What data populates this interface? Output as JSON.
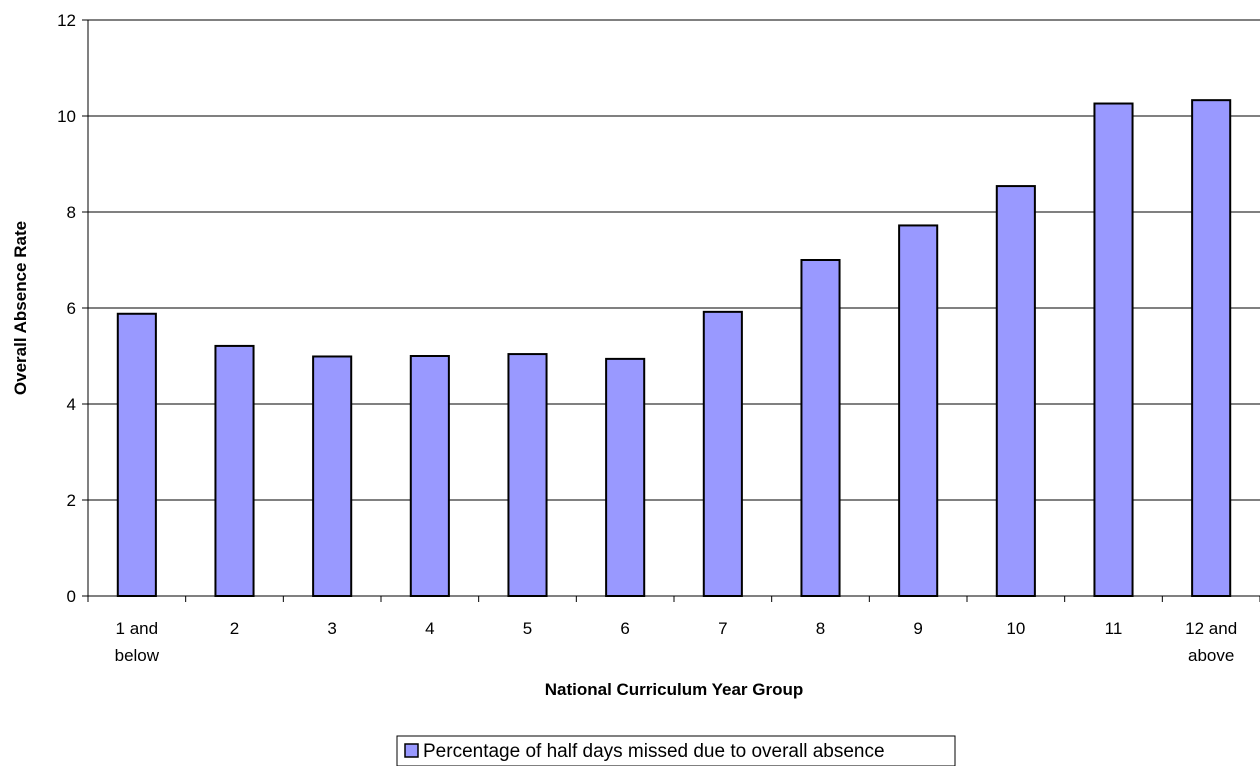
{
  "chart_data": {
    "type": "bar",
    "title": "",
    "xlabel": "National Curriculum Year Group",
    "ylabel": "Overall Absence Rate",
    "ylim": [
      0,
      12
    ],
    "yticks": [
      "0",
      "2",
      "4",
      "6",
      "8",
      "10",
      "12"
    ],
    "grid": true,
    "legend_position": "bottom",
    "categories": [
      [
        "1 and",
        "below"
      ],
      [
        "2"
      ],
      [
        "3"
      ],
      [
        "4"
      ],
      [
        "5"
      ],
      [
        "6"
      ],
      [
        "7"
      ],
      [
        "8"
      ],
      [
        "9"
      ],
      [
        "10"
      ],
      [
        "11"
      ],
      [
        "12 and",
        "above"
      ]
    ],
    "series": [
      {
        "name": "Percentage of half days missed due to overall absence",
        "color": "#9999ff",
        "values": [
          5.88,
          5.21,
          4.99,
          5.0,
          5.04,
          4.94,
          5.92,
          7.0,
          7.72,
          8.54,
          10.26,
          10.33
        ]
      }
    ]
  }
}
